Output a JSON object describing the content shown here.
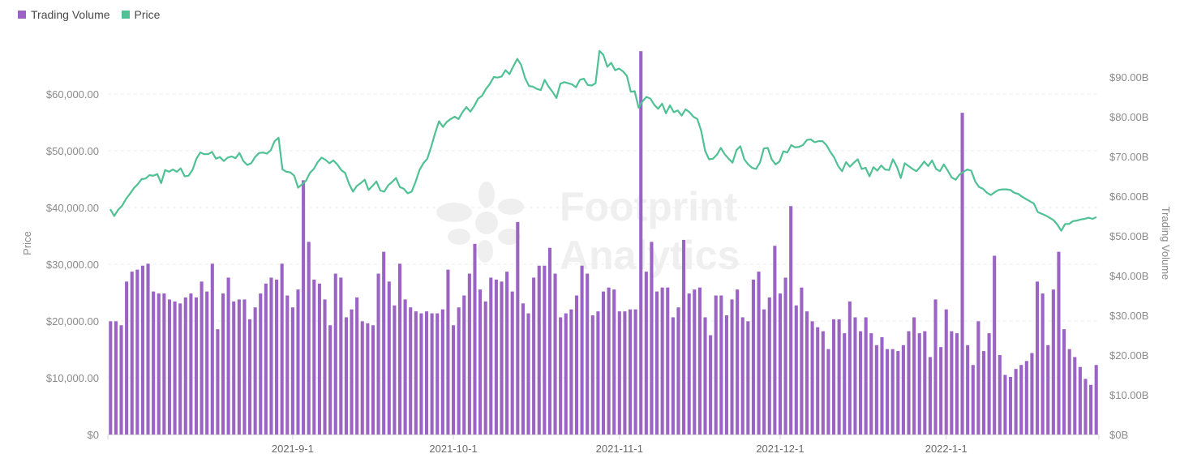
{
  "chart_data": {
    "type": "bar+line",
    "legend": [
      {
        "label": "Trading Volume",
        "color": "#9b64c4"
      },
      {
        "label": "Price",
        "color": "#4fc194"
      }
    ],
    "watermark": {
      "line1": "Footprint",
      "line2": "Analytics"
    },
    "y_left": {
      "label": "Price",
      "min": 0,
      "max": 70000,
      "ticks": [
        0,
        10000,
        20000,
        30000,
        40000,
        50000,
        60000
      ],
      "tick_labels": [
        "$0",
        "$10,000.00",
        "$20,000.00",
        "$30,000.00",
        "$40,000.00",
        "$50,000.00",
        "$60,000.00"
      ]
    },
    "y_right": {
      "label": "Trading Volume",
      "min": 0,
      "max": 100,
      "unit": "B",
      "ticks": [
        0,
        10,
        20,
        30,
        40,
        50,
        60,
        70,
        80,
        90
      ],
      "tick_labels": [
        "$0B",
        "$10.00B",
        "$20.00B",
        "$30.00B",
        "$40.00B",
        "$50.00B",
        "$60.00B",
        "$70.00B",
        "$80.00B",
        "$90.00B"
      ]
    },
    "x_ticks": [
      {
        "label": "2021-9-1",
        "index": 34
      },
      {
        "label": "2021-10-1",
        "index": 64
      },
      {
        "label": "2021-11-1",
        "index": 95
      },
      {
        "label": "2021-12-1",
        "index": 125
      },
      {
        "label": "2022-1-1",
        "index": 156
      }
    ],
    "start_date": "2021-07-28",
    "grid": true,
    "series": [
      {
        "name": "Trading Volume",
        "type": "bar",
        "axis": "right",
        "values": [
          28.5,
          28.5,
          27.5,
          38.5,
          41,
          41.5,
          42.5,
          43,
          36,
          35.5,
          35.5,
          34,
          33.5,
          33,
          34.5,
          35.5,
          34.5,
          38.5,
          36,
          43,
          26.5,
          35.5,
          39.5,
          33.5,
          34,
          34,
          29,
          32,
          35.5,
          38,
          39.5,
          39,
          43,
          35,
          32,
          36.5,
          64,
          48.5,
          39,
          38,
          34,
          27.5,
          40.5,
          39.5,
          29.5,
          31.5,
          34.5,
          28.5,
          28,
          27.5,
          40.5,
          46,
          38.5,
          32.5,
          43,
          34,
          32,
          31,
          30.5,
          31,
          30.5,
          30.5,
          31.5,
          41.5,
          27.5,
          32,
          35,
          40.5,
          48,
          36.5,
          33.5,
          39.5,
          39,
          38.5,
          41,
          36,
          53.5,
          33,
          30.5,
          39.5,
          42.5,
          42.5,
          47,
          40.5,
          29.5,
          30.5,
          31.5,
          35,
          42.5,
          40.5,
          30,
          31,
          36,
          37,
          36.5,
          31,
          31,
          31.5,
          31.5,
          96.5,
          41,
          48.5,
          36,
          37,
          37,
          29.5,
          32,
          49,
          35.5,
          36.5,
          37,
          29.5,
          25,
          35,
          35,
          30,
          34,
          36.5,
          29.5,
          28.5,
          39,
          41,
          31.5,
          34.5,
          47.5,
          35.5,
          39.5,
          57.5,
          32.5,
          37,
          31,
          28.5,
          27,
          26,
          21.5,
          29,
          29,
          25.5,
          33.5,
          29.5,
          26,
          29.5,
          25.5,
          22.5,
          24.5,
          21.5,
          21.5,
          21,
          22.5,
          26,
          29.5,
          25.5,
          26,
          19.5,
          34,
          22,
          31.5,
          26,
          25.5,
          81,
          22.5,
          17.5,
          28.5,
          21,
          25.5,
          45,
          20,
          15,
          14.5,
          16.5,
          17.5,
          18.5,
          20.5,
          38.5,
          35.5,
          22.5,
          36.5,
          46,
          26.5,
          21.5,
          19.5,
          17,
          14,
          12.5,
          17.5
        ]
      },
      {
        "name": "Price",
        "type": "line",
        "axis": "left",
        "values": [
          39700,
          38500,
          39600,
          40300,
          41500,
          42400,
          43400,
          44100,
          45000,
          45100,
          45700,
          45600,
          45900,
          44300,
          46600,
          46300,
          46700,
          46300,
          46900,
          45500,
          45600,
          46600,
          48600,
          49700,
          49400,
          49400,
          49800,
          48600,
          48900,
          48200,
          48800,
          49000,
          48700,
          49600,
          48200,
          47500,
          47800,
          48900,
          49600,
          49700,
          49500,
          50100,
          51700,
          52300,
          46700,
          46300,
          46200,
          45600,
          43500,
          44100,
          44700,
          46100,
          46800,
          48000,
          48800,
          48400,
          47800,
          48300,
          47600,
          46600,
          46100,
          44200,
          42800,
          43800,
          44300,
          44900,
          43100,
          43800,
          44600,
          43000,
          42800,
          43900,
          44500,
          45200,
          43600,
          43300,
          42500,
          42800,
          44500,
          46600,
          47800,
          48600,
          50700,
          53100,
          55200,
          54200,
          55100,
          55600,
          56000,
          55600,
          56800,
          57700,
          56900,
          57900,
          59200,
          59700,
          60900,
          61800,
          63000,
          62900,
          63100,
          64200,
          63500,
          64900,
          66200,
          65100,
          62800,
          61400,
          61300,
          60900,
          60700,
          62500,
          61300,
          60400,
          59300,
          61800,
          62100,
          61900,
          61700,
          61200,
          62500,
          62700,
          61600,
          61500,
          61900,
          67600,
          66900,
          64800,
          65500,
          64200,
          64500,
          64000,
          63200,
          60400,
          60500,
          57600,
          58700,
          59500,
          59200,
          58100,
          57400,
          58300,
          56600,
          58000,
          56800,
          57100,
          56200,
          57300,
          56800,
          56000,
          55600,
          53500,
          50000,
          48500,
          48600,
          49300,
          50500,
          49400,
          48600,
          47900,
          50100,
          50800,
          48500,
          47600,
          47000,
          46800,
          47900,
          50400,
          50500,
          48500,
          47600,
          48100,
          49900,
          49700,
          51000,
          50600,
          50700,
          51000,
          51900,
          52000,
          51500,
          51700,
          51700,
          51000,
          49800,
          48800,
          47300,
          46400,
          48000,
          47200,
          47900,
          48500,
          46800,
          47000,
          45500,
          47100,
          46500,
          47400,
          46700,
          46600,
          48500,
          47200,
          45200,
          47800,
          47300,
          46800,
          46400,
          47200,
          48100,
          47300,
          48300,
          46800,
          46400,
          47600,
          46500,
          45300,
          44900,
          45800,
          46300,
          46700,
          46500,
          44600,
          43600,
          43300,
          42600,
          42200,
          42700,
          43100,
          43200,
          43200,
          43100,
          42600,
          42400,
          41900,
          41500,
          41100,
          40700,
          39200,
          38900,
          38600,
          38200,
          37800,
          37000,
          35900,
          37100,
          37100,
          37600,
          37700,
          37900,
          38000,
          38200,
          38000,
          38300
        ]
      }
    ]
  }
}
